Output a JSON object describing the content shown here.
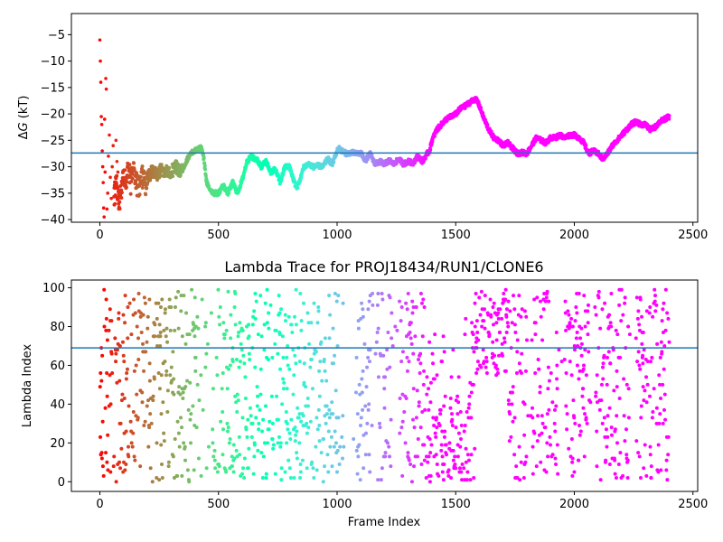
{
  "chart_data": [
    {
      "type": "scatter",
      "title": "",
      "xlabel": "",
      "ylabel": "ΔG (kT)",
      "xlim": [
        -120,
        2520
      ],
      "ylim": [
        -40.5,
        -1.0
      ],
      "xticks": [
        0,
        500,
        1000,
        1500,
        2000,
        2500
      ],
      "yticks": [
        -40,
        -35,
        -30,
        -25,
        -20,
        -15,
        -10,
        -5
      ],
      "grid": false,
      "colormap": "rainbow (red at frame 0 → purple at late frames)",
      "hline": {
        "y": -27.4,
        "color": "#1f77b4"
      },
      "trace_keypoints": {
        "x": [
          0,
          5,
          10,
          15,
          20,
          25,
          30,
          35,
          40,
          50,
          60,
          70,
          80,
          90,
          100,
          110,
          120,
          130,
          140,
          150,
          160,
          170,
          180,
          190,
          200,
          220,
          240,
          260,
          280,
          300,
          320,
          340,
          360,
          380,
          400,
          420,
          430,
          440,
          450,
          460,
          480,
          500,
          520,
          540,
          560,
          580,
          600,
          620,
          640,
          650,
          660,
          680,
          700,
          720,
          740,
          760,
          780,
          800,
          820,
          830,
          840,
          860,
          880,
          900,
          920,
          940,
          960,
          980,
          1000,
          1010,
          1020,
          1040,
          1060,
          1080,
          1100,
          1120,
          1140,
          1160,
          1180,
          1200,
          1220,
          1240,
          1260,
          1280,
          1300,
          1320,
          1340,
          1360,
          1380,
          1390,
          1400,
          1420,
          1440,
          1460,
          1480,
          1500,
          1520,
          1540,
          1560,
          1580,
          1590,
          1600,
          1620,
          1640,
          1660,
          1680,
          1700,
          1720,
          1740,
          1760,
          1780,
          1800,
          1820,
          1840,
          1860,
          1880,
          1900,
          1920,
          1940,
          1960,
          1980,
          2000,
          2020,
          2040,
          2060,
          2080,
          2100,
          2120,
          2140,
          2160,
          2180,
          2200,
          2220,
          2240,
          2260,
          2280,
          2300,
          2320,
          2340,
          2360,
          2380,
          2400
        ],
        "y": [
          -6,
          -10,
          -14,
          -20.5,
          -22,
          -13.5,
          -39,
          -33,
          -29,
          -31,
          -36,
          -33,
          -37,
          -34,
          -31,
          -33,
          -30,
          -33,
          -31,
          -32,
          -34,
          -33,
          -32,
          -34,
          -32,
          -31,
          -31.5,
          -30.5,
          -31,
          -31,
          -30,
          -31,
          -29.5,
          -27.5,
          -27,
          -26.5,
          -26.5,
          -29,
          -33,
          -34,
          -35,
          -35,
          -33.5,
          -35,
          -33,
          -35,
          -32.5,
          -29,
          -28,
          -28.5,
          -28.5,
          -30,
          -29,
          -31,
          -30.5,
          -33,
          -30,
          -30,
          -33,
          -34,
          -33,
          -30,
          -29.5,
          -30,
          -29.8,
          -30,
          -28.5,
          -29.5,
          -27,
          -26.5,
          -27,
          -27.5,
          -27.3,
          -27.5,
          -27.4,
          -28.8,
          -27.5,
          -29.5,
          -29,
          -29.5,
          -28.8,
          -29.5,
          -28.5,
          -29.5,
          -29,
          -29.3,
          -28,
          -29,
          -27.5,
          -27,
          -25,
          -23,
          -22,
          -21,
          -20.5,
          -20,
          -19,
          -18.5,
          -17.8,
          -17.2,
          -17.5,
          -18.5,
          -21,
          -23,
          -24.5,
          -25,
          -26,
          -25.5,
          -26.5,
          -27.5,
          -27.3,
          -27.5,
          -26,
          -24.5,
          -25,
          -25.5,
          -24.5,
          -24.5,
          -24,
          -24.5,
          -24,
          -24,
          -24.5,
          -25.5,
          -27.5,
          -27,
          -27.5,
          -28.5,
          -27.5,
          -26,
          -25,
          -24,
          -23,
          -22,
          -21.5,
          -22,
          -22,
          -23,
          -22.5,
          -21.5,
          -21,
          -20.5
        ]
      }
    },
    {
      "type": "scatter",
      "title": "Lambda Trace for PROJ18434/RUN1/CLONE6",
      "xlabel": "Frame Index",
      "ylabel": "Lambda Index",
      "xlim": [
        -120,
        2520
      ],
      "ylim": [
        -5,
        104
      ],
      "xticks": [
        0,
        500,
        1000,
        1500,
        2000,
        2500
      ],
      "yticks": [
        0,
        20,
        40,
        60,
        80,
        100
      ],
      "grid": false,
      "colormap": "rainbow (red at frame 0 → purple at late frames)",
      "hline": {
        "y": 69,
        "color": "#1f77b4"
      },
      "lambda_range": [
        0,
        99
      ],
      "frame_count": 2400
    }
  ]
}
